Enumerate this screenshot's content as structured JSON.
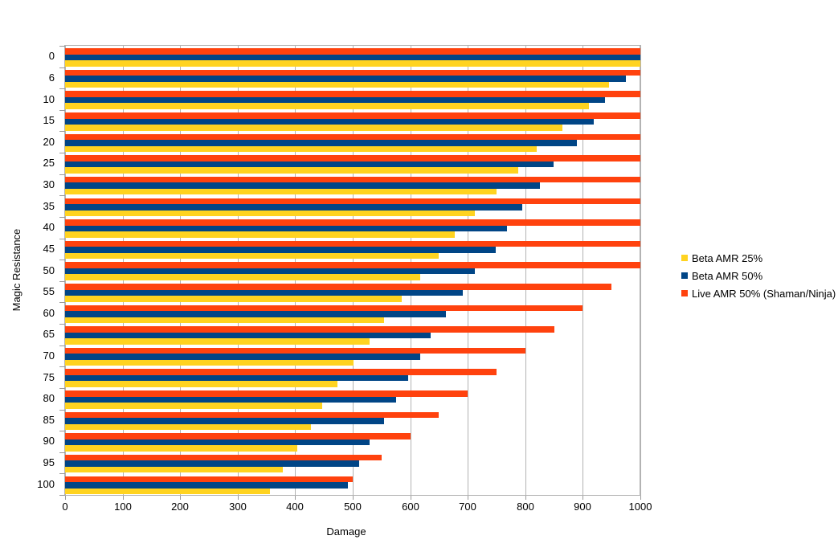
{
  "chart_data": {
    "type": "bar",
    "orientation": "horizontal",
    "title": "",
    "xlabel": "Damage",
    "ylabel": "Magic Resistance",
    "xlim": [
      0,
      1000
    ],
    "x_ticks": [
      0,
      100,
      200,
      300,
      400,
      500,
      600,
      700,
      800,
      900,
      1000
    ],
    "categories": [
      "0",
      "6",
      "10",
      "15",
      "20",
      "25",
      "30",
      "35",
      "40",
      "45",
      "50",
      "55",
      "60",
      "65",
      "70",
      "75",
      "80",
      "85",
      "90",
      "95",
      "100"
    ],
    "series": [
      {
        "name": "Beta AMR 25%",
        "color": "#FFD320",
        "values": [
          1000,
          945,
          910,
          865,
          820,
          788,
          750,
          712,
          677,
          650,
          617,
          585,
          555,
          530,
          502,
          474,
          447,
          428,
          403,
          379,
          356
        ]
      },
      {
        "name": "Beta AMR 50%",
        "color": "#004586",
        "values": [
          1000,
          975,
          938,
          919,
          890,
          849,
          825,
          795,
          768,
          748,
          712,
          692,
          662,
          636,
          618,
          597,
          575,
          554,
          529,
          511,
          492
        ]
      },
      {
        "name": "Live AMR 50% (Shaman/Ninja)",
        "color": "#FF420E",
        "values": [
          1000,
          1000,
          1000,
          1000,
          1000,
          1000,
          1000,
          1000,
          1000,
          1000,
          1000,
          950,
          900,
          850,
          800,
          750,
          700,
          650,
          600,
          550,
          500
        ]
      }
    ],
    "legend_position": "right",
    "grid": true,
    "colors": {
      "gridline": "#b3b3b3",
      "plot_border": "#b3b3b3",
      "tick": "#9a9a9a",
      "text": "#000000",
      "background": "#ffffff"
    }
  }
}
